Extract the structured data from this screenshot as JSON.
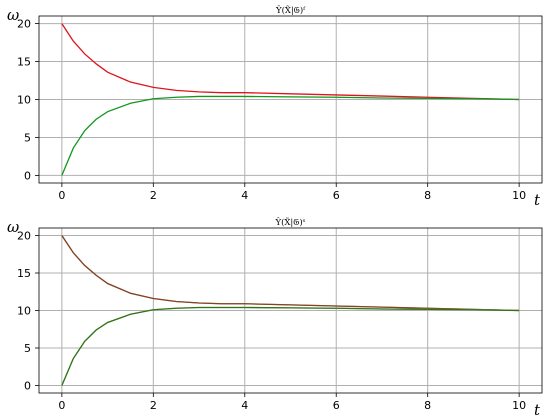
{
  "chart_data": [
    {
      "type": "line",
      "title": "Ŷ(X̃|𝔊)ᶠ",
      "xlabel": "t",
      "ylabel": "ω",
      "xlim": [
        -0.5,
        10.5
      ],
      "ylim": [
        -1,
        21
      ],
      "xticks": [
        0,
        2,
        4,
        6,
        8,
        10
      ],
      "yticks": [
        0,
        5,
        10,
        15,
        20
      ],
      "grid": true,
      "legend": "none",
      "series": [
        {
          "color": "#e0141e",
          "x": [
            0,
            0.25,
            0.5,
            0.75,
            1,
            1.5,
            2,
            2.5,
            3,
            3.5,
            4,
            5,
            6,
            7,
            8,
            9,
            10
          ],
          "y": [
            20,
            17.7,
            16,
            14.7,
            13.6,
            12.3,
            11.6,
            11.2,
            11.0,
            10.9,
            10.9,
            10.75,
            10.6,
            10.45,
            10.3,
            10.15,
            10.0
          ]
        },
        {
          "color": "#14961e",
          "x": [
            0,
            0.25,
            0.5,
            0.75,
            1,
            1.5,
            2,
            2.5,
            3,
            3.5,
            4,
            5,
            6,
            7,
            8,
            9,
            10
          ],
          "y": [
            0,
            3.6,
            5.9,
            7.4,
            8.4,
            9.5,
            10.1,
            10.3,
            10.4,
            10.4,
            10.4,
            10.35,
            10.3,
            10.2,
            10.15,
            10.1,
            10.0
          ]
        }
      ]
    },
    {
      "type": "line",
      "title": "Ŷ(X̃|𝔊)ˢ",
      "xlabel": "t",
      "ylabel": "ω",
      "xlim": [
        -0.5,
        10.5
      ],
      "ylim": [
        -1,
        21
      ],
      "xticks": [
        0,
        2,
        4,
        6,
        8,
        10
      ],
      "yticks": [
        0,
        5,
        10,
        15,
        20
      ],
      "grid": true,
      "legend": "none",
      "series": [
        {
          "color": "#ff64ff",
          "x": [
            0,
            0.25,
            0.5,
            0.75,
            1,
            1.5,
            2,
            2.5,
            3,
            3.5,
            4,
            5,
            6,
            7,
            8,
            9,
            10
          ],
          "y": [
            20,
            17.7,
            16,
            14.7,
            13.6,
            12.3,
            11.6,
            11.2,
            11.0,
            10.9,
            10.9,
            10.75,
            10.6,
            10.45,
            10.3,
            10.15,
            10.0
          ]
        },
        {
          "color": "#7a4a14",
          "x": [
            0,
            0.25,
            0.5,
            0.75,
            1,
            1.5,
            2,
            2.5,
            3,
            3.5,
            4,
            5,
            6,
            7,
            8,
            9,
            10
          ],
          "y": [
            20,
            17.7,
            16,
            14.7,
            13.6,
            12.3,
            11.6,
            11.2,
            11.0,
            10.9,
            10.9,
            10.75,
            10.6,
            10.45,
            10.3,
            10.15,
            10.0
          ]
        },
        {
          "color": "#50e6b4",
          "x": [
            0,
            0.25,
            0.5,
            0.75,
            1,
            1.5,
            2,
            2.5,
            3,
            3.5,
            4,
            5,
            6,
            7,
            8,
            9,
            10
          ],
          "y": [
            0,
            3.6,
            5.9,
            7.4,
            8.4,
            9.5,
            10.1,
            10.3,
            10.4,
            10.4,
            10.4,
            10.35,
            10.3,
            10.2,
            10.15,
            10.1,
            10.0
          ]
        },
        {
          "color": "#3c6e14",
          "x": [
            0,
            0.25,
            0.5,
            0.75,
            1,
            1.5,
            2,
            2.5,
            3,
            3.5,
            4,
            5,
            6,
            7,
            8,
            9,
            10
          ],
          "y": [
            0,
            3.6,
            5.9,
            7.4,
            8.4,
            9.5,
            10.1,
            10.3,
            10.4,
            10.4,
            10.4,
            10.35,
            10.3,
            10.2,
            10.15,
            10.1,
            10.0
          ]
        }
      ]
    }
  ]
}
